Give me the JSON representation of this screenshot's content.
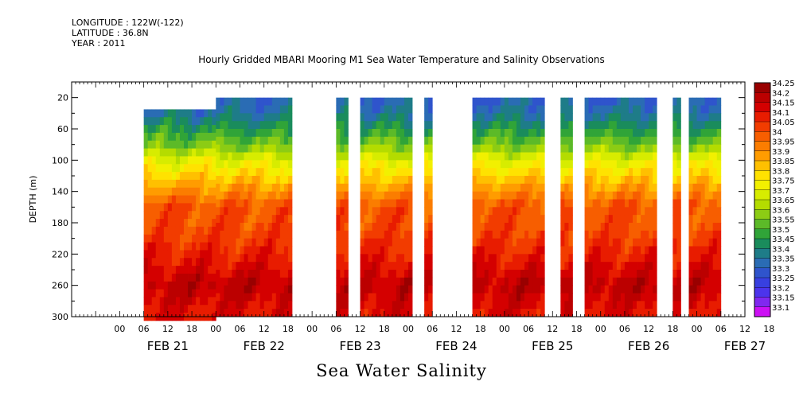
{
  "header": {
    "longitude": "LONGITUDE : 122W(-122)",
    "latitude": "LATITUDE : 36.8N",
    "year": "YEAR : 2011"
  },
  "chart_data": {
    "type": "heatmap",
    "title": "Hourly Gridded MBARI Mooring M1 Sea Water Temperature and Salinity Observations",
    "xlabel": "Sea Water Salinity",
    "ylabel": "DEPTH (m)",
    "ylim": [
      300,
      0
    ],
    "y_ticks": [
      20,
      60,
      100,
      140,
      180,
      220,
      260,
      300
    ],
    "x_hour_ticks": [
      "00",
      "06",
      "12",
      "18",
      "00",
      "06",
      "12",
      "18",
      "00",
      "06",
      "12",
      "18",
      "00",
      "06",
      "12",
      "18",
      "00",
      "06",
      "12",
      "18",
      "00",
      "06",
      "12",
      "18",
      "00",
      "06",
      "12",
      "18"
    ],
    "x_day_labels": [
      "FEB 21",
      "FEB 22",
      "FEB 23",
      "FEB 24",
      "FEB 25",
      "FEB 26",
      "FEB 27"
    ],
    "colorbar": {
      "levels": [
        "34.25",
        "34.2",
        "34.15",
        "34.1",
        "34.05",
        "34",
        "33.95",
        "33.9",
        "33.85",
        "33.8",
        "33.75",
        "33.7",
        "33.65",
        "33.6",
        "33.55",
        "33.5",
        "33.45",
        "33.4",
        "33.35",
        "33.3",
        "33.25",
        "33.2",
        "33.15",
        "33.1"
      ],
      "colors": [
        "#990000",
        "#bb0000",
        "#d40000",
        "#e81c00",
        "#f23c00",
        "#f75e00",
        "#fb7d00",
        "#ff9c00",
        "#ffc000",
        "#ffe200",
        "#f2f000",
        "#d7ec00",
        "#b4dc00",
        "#8ccc14",
        "#5cba28",
        "#30a438",
        "#1a8c5c",
        "#1e7c88",
        "#2a6cb4",
        "#2f54cc",
        "#3840e0",
        "#4c34ec",
        "#8028f0",
        "#cc10f4"
      ]
    },
    "data_hours_segments": [
      [
        6,
        24
      ],
      [
        24,
        43
      ],
      [
        54,
        57
      ],
      [
        60,
        73
      ],
      [
        76,
        78
      ],
      [
        88,
        106
      ],
      [
        110,
        113
      ],
      [
        116,
        134
      ],
      [
        138,
        140
      ],
      [
        142,
        150
      ]
    ],
    "segment_top_depth": [
      35,
      20,
      20,
      20,
      20,
      20,
      20,
      20,
      20,
      20
    ],
    "profile_depths": [
      20,
      40,
      60,
      80,
      100,
      120,
      140,
      160,
      180,
      200,
      220,
      240,
      260,
      280,
      300
    ],
    "profile_salinity": [
      33.35,
      33.4,
      33.5,
      33.6,
      33.75,
      33.85,
      33.95,
      34.05,
      34.05,
      34.08,
      34.12,
      34.17,
      34.22,
      34.18,
      34.15
    ]
  }
}
